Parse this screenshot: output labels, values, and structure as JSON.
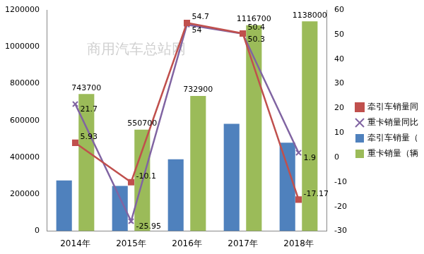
{
  "chart_data": {
    "type": "bar",
    "categories": [
      "2014年",
      "2015年",
      "2016年",
      "2017年",
      "2018年"
    ],
    "series": [
      {
        "name": "牵引车销量（辆）",
        "type": "bar",
        "color": "#4f81bd",
        "values": [
          275000,
          245000,
          390000,
          582000,
          480000
        ],
        "data_labels": false
      },
      {
        "name": "重卡销量（辆）",
        "type": "bar",
        "color": "#9bbb59",
        "values": [
          743700,
          550700,
          732900,
          1116700,
          1138000
        ],
        "data_labels": true
      },
      {
        "name": "牵引车销量同比%",
        "type": "line",
        "axis": "y2",
        "color": "#c0504d",
        "marker": "square",
        "values": [
          5.93,
          -10.1,
          54.7,
          50.4,
          -17.17
        ],
        "data_labels": true
      },
      {
        "name": "重卡销量同比%",
        "type": "line",
        "axis": "y2",
        "color": "#8064a2",
        "marker": "x",
        "values": [
          21.7,
          -25.95,
          54,
          50.3,
          1.9
        ],
        "data_labels": true
      }
    ],
    "ylim": [
      0,
      1200000
    ],
    "yticks": [
      0,
      200000,
      400000,
      600000,
      800000,
      1000000,
      1200000
    ],
    "y2lim": [
      -30,
      60
    ],
    "y2ticks": [
      -30,
      -20,
      -10,
      0,
      10,
      20,
      30,
      40,
      50,
      60
    ],
    "grid": false,
    "legend": "right",
    "annotations": [
      "商用汽车总站网"
    ]
  }
}
